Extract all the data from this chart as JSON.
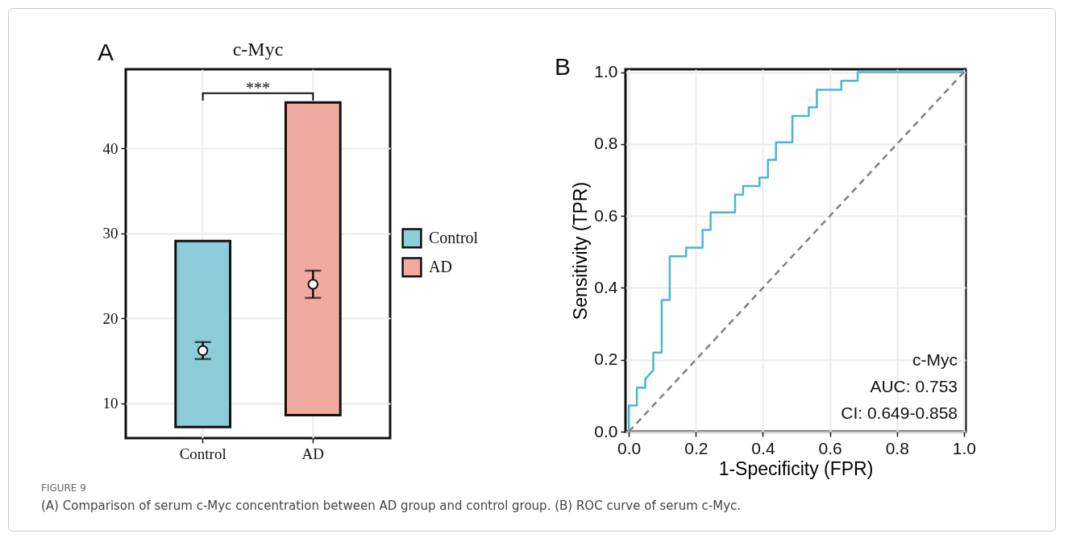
{
  "chart_data": [
    {
      "type": "bar",
      "title": "c-Myc",
      "categories": [
        "Control",
        "AD"
      ],
      "ylim": [
        5.9,
        49.3
      ],
      "yticks": [
        10,
        20,
        30,
        40
      ],
      "grid": true,
      "legend": "right",
      "series": [
        {
          "name": "Control",
          "base": [
            7.2,
            null
          ],
          "values": [
            21.9,
            null
          ],
          "color": "#8ccdd9"
        },
        {
          "name": "AD",
          "base": [
            null,
            8.6
          ],
          "values": [
            null,
            36.8
          ],
          "color": "#f0aaa0"
        },
        {
          "type": "scatter",
          "x": [
            "Control",
            "AD"
          ],
          "values": [
            16.2,
            24.0
          ],
          "errors": [
            [
              15.2,
              17.2
            ],
            [
              22.4,
              25.6
            ]
          ],
          "color": "#ffffff"
        }
      ],
      "annotations": [
        "A",
        "***",
        "FIGURE 9",
        "(A) Comparison of serum c-Myc concentration between AD group and control group. (B) ROC curve of serum c-Myc."
      ]
    },
    {
      "type": "line",
      "xlabel": "1-Specificity (FPR)",
      "ylabel": "Sensitivity (TPR)",
      "xlim": [
        -0.01,
        1.005
      ],
      "ylim": [
        0,
        1.008
      ],
      "xticks": [
        {
          "value": 0,
          "label": "0.0"
        },
        0.2,
        0.4,
        0.6,
        0.8,
        {
          "value": 1,
          "label": "1.0"
        }
      ],
      "yticks": [
        {
          "value": 0,
          "label": "0.0"
        },
        0.2,
        0.4,
        0.6,
        0.8,
        {
          "value": 1,
          "label": "1.0"
        }
      ],
      "grid": true,
      "series": [
        {
          "color": "#4bb6d0",
          "line_style": "solid",
          "x": [
            0,
            0,
            0.024,
            0.024,
            0.049,
            0.049,
            0.073,
            0.073,
            0.098,
            0.098,
            0.122,
            0.122,
            0.171,
            0.171,
            0.22,
            0.22,
            0.244,
            0.244,
            0.317,
            0.317,
            0.341,
            0.341,
            0.39,
            0.39,
            0.415,
            0.415,
            0.439,
            0.439,
            0.488,
            0.488,
            0.537,
            0.537,
            0.561,
            0.561,
            0.634,
            0.634,
            0.683,
            0.683,
            1.0
          ],
          "values": [
            0,
            0.073,
            0.073,
            0.122,
            0.122,
            0.146,
            0.171,
            0.22,
            0.22,
            0.366,
            0.366,
            0.488,
            0.488,
            0.512,
            0.512,
            0.561,
            0.561,
            0.61,
            0.61,
            0.659,
            0.659,
            0.683,
            0.683,
            0.707,
            0.707,
            0.756,
            0.756,
            0.805,
            0.805,
            0.878,
            0.878,
            0.902,
            0.902,
            0.951,
            0.951,
            0.976,
            0.976,
            1.0,
            1.0
          ]
        },
        {
          "color": "#808080",
          "line_style": "dashed",
          "x": [
            0,
            1
          ],
          "values": [
            0,
            1
          ]
        }
      ],
      "annotations": [
        "B",
        "c-Myc",
        "AUC: 0.753",
        "CI: 0.649-0.858"
      ]
    }
  ]
}
